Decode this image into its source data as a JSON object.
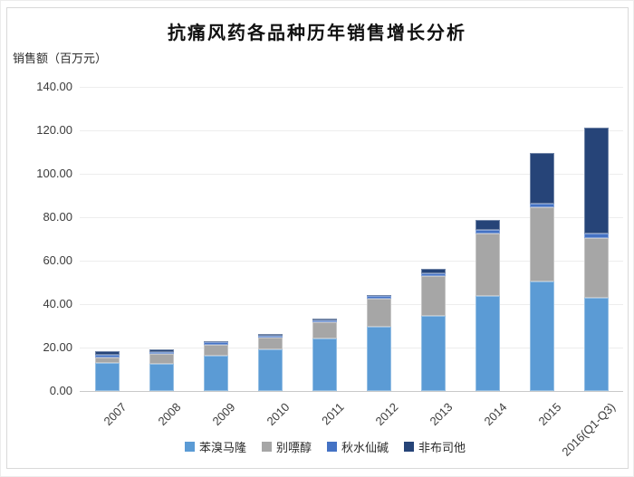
{
  "page": {
    "background": "#ffffff",
    "card_border": "#d9d9d9",
    "gridline_color": "#ededed",
    "axisline_color": "#c9c9c9"
  },
  "chart_data": {
    "type": "bar",
    "stacked": true,
    "title": "抗痛风药各品种历年销售增长分析",
    "ylabel": "销售额（百万元）",
    "xlabel": "",
    "categories": [
      "2007",
      "2008",
      "2009",
      "2010",
      "2011",
      "2012",
      "2013",
      "2014",
      "2015",
      "2016(Q1-Q3)"
    ],
    "series": [
      {
        "name": "苯溴马隆",
        "color": "#5B9BD5",
        "values": [
          12.8,
          12.6,
          16.2,
          19.0,
          24.1,
          29.5,
          34.4,
          43.8,
          50.3,
          42.8
        ]
      },
      {
        "name": "别嘌醇",
        "color": "#A6A6A6",
        "values": [
          2.7,
          4.3,
          5.2,
          5.8,
          7.5,
          12.9,
          18.5,
          28.7,
          34.3,
          27.8
        ]
      },
      {
        "name": "秋水仙碱",
        "color": "#4472C4",
        "values": [
          1.0,
          1.1,
          1.2,
          0.8,
          0.8,
          1.4,
          1.1,
          1.7,
          1.5,
          1.7
        ]
      },
      {
        "name": "非布司他",
        "color": "#264478",
        "values": [
          1.9,
          1.1,
          0.3,
          0.8,
          1.1,
          0.3,
          2.2,
          4.7,
          23.4,
          49.1
        ]
      }
    ],
    "totals_approx": [
      18.4,
      19.1,
      22.9,
      26.4,
      33.5,
      44.1,
      56.2,
      78.9,
      109.5,
      121.4
    ],
    "ylim": [
      0,
      140
    ],
    "ytick_labels": [
      "140.00",
      "120.00",
      "100.00",
      "80.00",
      "60.00",
      "40.00",
      "20.00",
      "0.00"
    ],
    "grid": true,
    "legend_position": "bottom"
  }
}
